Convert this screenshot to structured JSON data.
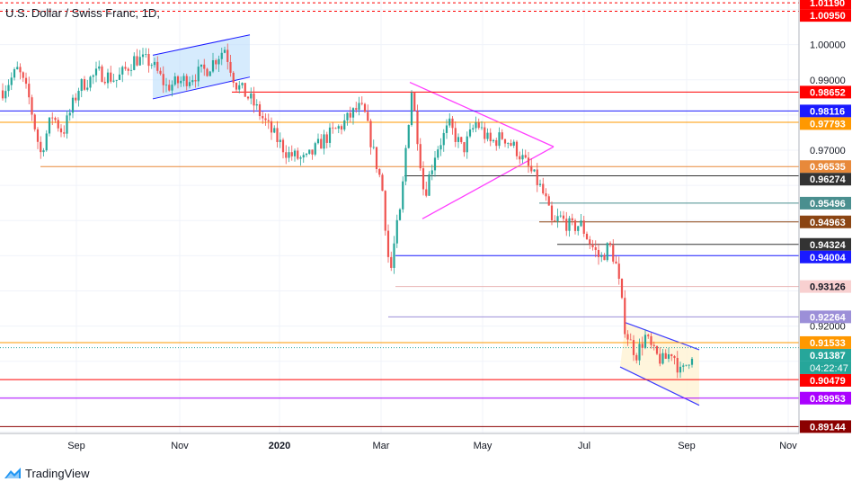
{
  "chart_title": "U.S. Dollar / Swiss Franc, 1D,",
  "brand": {
    "name": "TradingView",
    "icon": "tradingview-logo-icon"
  },
  "countdown": "04:22:47",
  "chart_data": {
    "type": "candlestick",
    "symbol": "USDCHF",
    "timeframe": "1D",
    "ylim": [
      0.8895,
      1.0127
    ],
    "y_ticks": [
      0.92,
      0.97,
      0.99,
      1.0
    ],
    "x_ticks": [
      "Sep",
      "Nov",
      "2020",
      "Mar",
      "May",
      "Jul",
      "Sep",
      "Nov"
    ],
    "colors": {
      "up": "#26a69a",
      "down": "#ef5350"
    },
    "levels": [
      {
        "value": 1.0119,
        "label": "1.01190",
        "color": "#ff0000",
        "style": "dashed"
      },
      {
        "value": 1.0095,
        "label": "1.00950",
        "color": "#ff0000",
        "style": "dashed"
      },
      {
        "value": 0.98652,
        "label": "0.98652",
        "color": "#ff0000"
      },
      {
        "value": 0.98116,
        "label": "0.98116",
        "color": "#1a1aff"
      },
      {
        "value": 0.97793,
        "label": "0.97793",
        "color": "#ff9800"
      },
      {
        "value": 0.96535,
        "label": "0.96535",
        "color": "#e8893a"
      },
      {
        "value": 0.96274,
        "label": "0.96274",
        "color": "#333333"
      },
      {
        "value": 0.95496,
        "label": "0.95496",
        "color": "#4a8f8f"
      },
      {
        "value": 0.94963,
        "label": "0.94963",
        "color": "#8b4513"
      },
      {
        "value": 0.94324,
        "label": "0.94324",
        "color": "#333333"
      },
      {
        "value": 0.94004,
        "label": "0.94004",
        "color": "#1a1aff"
      },
      {
        "value": 0.93126,
        "label": "0.93126",
        "color": "#e8b4b4"
      },
      {
        "value": 0.92264,
        "label": "0.92264",
        "color": "#9c8fd8"
      },
      {
        "value": 0.91533,
        "label": "0.91533",
        "color": "#ff9800"
      },
      {
        "value": 0.91387,
        "label": "0.91387",
        "color": "#26a69a"
      },
      {
        "value": 0.90479,
        "label": "0.90479",
        "color": "#ff0000"
      },
      {
        "value": 0.89953,
        "label": "0.89953",
        "color": "#aa00ff"
      },
      {
        "value": 0.89144,
        "label": "0.89144",
        "color": "#8b0000"
      }
    ],
    "last_price": 0.91387
  }
}
